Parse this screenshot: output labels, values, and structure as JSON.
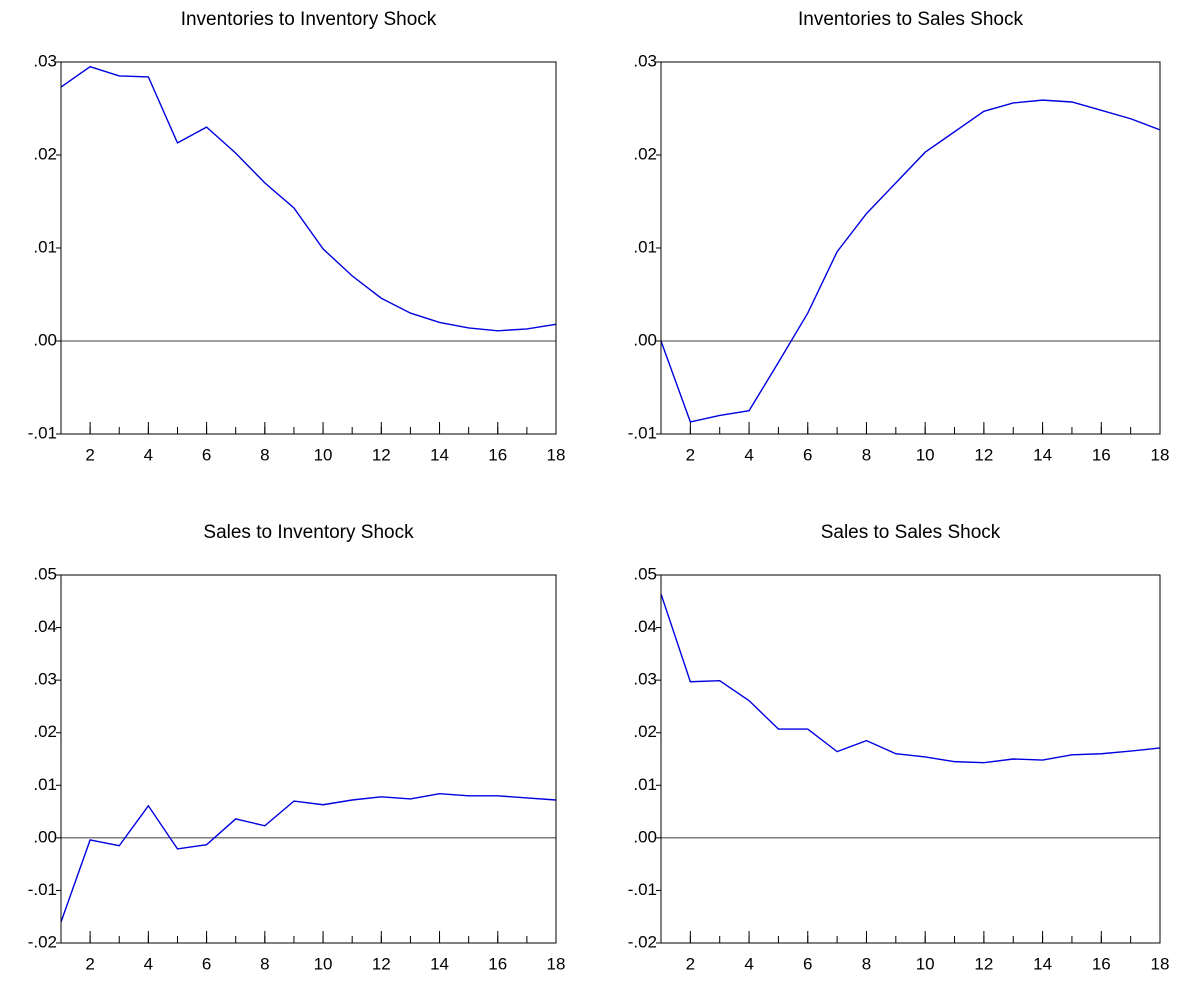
{
  "chart_data": [
    {
      "type": "line",
      "title": "Inventories to Inventory Shock",
      "x": [
        1,
        2,
        3,
        4,
        5,
        6,
        7,
        8,
        9,
        10,
        11,
        12,
        13,
        14,
        15,
        16,
        17,
        18
      ],
      "series": [
        {
          "color": "#0000e0",
          "values": [
            0.0273,
            0.0295,
            0.0285,
            0.0284,
            0.0213,
            0.023,
            0.0202,
            0.017,
            0.0143,
            0.0099,
            0.007,
            0.0046,
            0.003,
            0.002,
            0.0014,
            0.0011,
            0.0013,
            0.0018
          ]
        }
      ],
      "xlim": [
        1,
        18
      ],
      "xticks": [
        2,
        4,
        6,
        8,
        10,
        12,
        14,
        16,
        18
      ],
      "ylim": [
        -0.01,
        0.03
      ],
      "yticks": [
        {
          "value": -0.01,
          "label": "-.01"
        },
        {
          "value": 0,
          "label": ".00"
        },
        {
          "value": 0.01,
          "label": ".01"
        },
        {
          "value": 0.02,
          "label": ".02"
        },
        {
          "value": 0.03,
          "label": ".03"
        }
      ]
    },
    {
      "type": "line",
      "title": "Inventories to Sales Shock",
      "x": [
        1,
        2,
        3,
        4,
        5,
        6,
        7,
        8,
        9,
        10,
        11,
        12,
        13,
        14,
        15,
        16,
        17,
        18
      ],
      "series": [
        {
          "color": "#0000e0",
          "values": [
            0,
            -0.0087,
            -0.008,
            -0.0075,
            -0.0023,
            0.003,
            0.0096,
            0.0137,
            0.017,
            0.0203,
            0.0225,
            0.0247,
            0.0256,
            0.0259,
            0.0257,
            0.0248,
            0.0239,
            0.0227
          ]
        }
      ],
      "xlim": [
        1,
        18
      ],
      "xticks": [
        2,
        4,
        6,
        8,
        10,
        12,
        14,
        16,
        18
      ],
      "ylim": [
        -0.01,
        0.03
      ],
      "yticks": [
        {
          "value": -0.01,
          "label": "-.01"
        },
        {
          "value": 0,
          "label": ".00"
        },
        {
          "value": 0.01,
          "label": ".01"
        },
        {
          "value": 0.02,
          "label": ".02"
        },
        {
          "value": 0.03,
          "label": ".03"
        }
      ]
    },
    {
      "type": "line",
      "title": "Sales to Inventory Shock",
      "x": [
        1,
        2,
        3,
        4,
        5,
        6,
        7,
        8,
        9,
        10,
        11,
        12,
        13,
        14,
        15,
        16,
        17,
        18
      ],
      "series": [
        {
          "color": "#0000e0",
          "values": [
            -0.016,
            -0.0004,
            -0.0015,
            0.0061,
            -0.0021,
            -0.0013,
            0.0036,
            0.0023,
            0.007,
            0.0063,
            0.0072,
            0.0078,
            0.0074,
            0.0084,
            0.008,
            0.008,
            0.0076,
            0.0072
          ]
        }
      ],
      "xlim": [
        1,
        18
      ],
      "xticks": [
        2,
        4,
        6,
        8,
        10,
        12,
        14,
        16,
        18
      ],
      "ylim": [
        -0.02,
        0.05
      ],
      "yticks": [
        {
          "value": -0.02,
          "label": "-.02"
        },
        {
          "value": -0.01,
          "label": "-.01"
        },
        {
          "value": 0,
          "label": ".00"
        },
        {
          "value": 0.01,
          "label": ".01"
        },
        {
          "value": 0.02,
          "label": ".02"
        },
        {
          "value": 0.03,
          "label": ".03"
        },
        {
          "value": 0.04,
          "label": ".04"
        },
        {
          "value": 0.05,
          "label": ".05"
        }
      ]
    },
    {
      "type": "line",
      "title": "Sales to Sales Shock",
      "x": [
        1,
        2,
        3,
        4,
        5,
        6,
        7,
        8,
        9,
        10,
        11,
        12,
        13,
        14,
        15,
        16,
        17,
        18
      ],
      "series": [
        {
          "color": "#0000e0",
          "values": [
            0.0464,
            0.0297,
            0.0299,
            0.0261,
            0.0207,
            0.0207,
            0.0164,
            0.0185,
            0.016,
            0.0154,
            0.0145,
            0.0143,
            0.015,
            0.0148,
            0.0158,
            0.016,
            0.0165,
            0.0171
          ]
        }
      ],
      "xlim": [
        1,
        18
      ],
      "xticks": [
        2,
        4,
        6,
        8,
        10,
        12,
        14,
        16,
        18
      ],
      "ylim": [
        -0.02,
        0.05
      ],
      "yticks": [
        {
          "value": -0.02,
          "label": "-.02"
        },
        {
          "value": -0.01,
          "label": "-.01"
        },
        {
          "value": 0,
          "label": ".00"
        },
        {
          "value": 0.01,
          "label": ".01"
        },
        {
          "value": 0.02,
          "label": ".02"
        },
        {
          "value": 0.03,
          "label": ".03"
        },
        {
          "value": 0.04,
          "label": ".04"
        },
        {
          "value": 0.05,
          "label": ".05"
        }
      ]
    }
  ]
}
